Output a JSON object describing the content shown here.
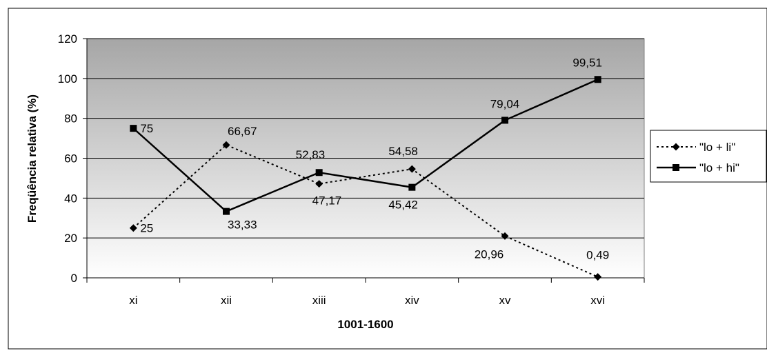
{
  "chart_data": {
    "type": "line",
    "categories": [
      "xi",
      "xii",
      "xiii",
      "xiv",
      "xv",
      "xvi"
    ],
    "series": [
      {
        "name": "\"lo + li\"",
        "values": [
          25,
          66.67,
          47.17,
          54.58,
          20.96,
          0.49
        ],
        "labels": [
          "25",
          "66,67",
          "47,17",
          "54,58",
          "20,96",
          "0,49"
        ],
        "style": "dotted",
        "marker": "diamond"
      },
      {
        "name": "\"lo + hi\"",
        "values": [
          75,
          33.33,
          52.83,
          45.42,
          79.04,
          99.51
        ],
        "labels": [
          "75",
          "33,33",
          "52,83",
          "45,42",
          "79,04",
          "99,51"
        ],
        "style": "solid",
        "marker": "square"
      }
    ],
    "xlabel": "1001-1600",
    "ylabel": "Freqüência relativa (%)",
    "ylim": [
      0,
      120
    ],
    "yticks": [
      0,
      20,
      40,
      60,
      80,
      100,
      120
    ],
    "grid": true,
    "legend": "right",
    "colors": {
      "line": "#000000",
      "plot_gradient_top": "#a6a6a6",
      "plot_gradient_bottom": "#ffffff"
    }
  }
}
